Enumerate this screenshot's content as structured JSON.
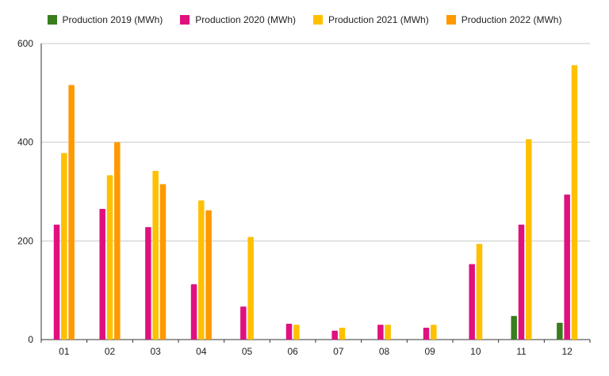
{
  "chart_data": {
    "type": "bar",
    "categories": [
      "01",
      "02",
      "03",
      "04",
      "05",
      "06",
      "07",
      "08",
      "09",
      "10",
      "11",
      "12"
    ],
    "series": [
      {
        "name": "Production 2019 (MWh)",
        "color": "#3a7d1e",
        "values": [
          null,
          null,
          null,
          null,
          null,
          null,
          null,
          null,
          null,
          null,
          48,
          34
        ]
      },
      {
        "name": "Production 2020 (MWh)",
        "color": "#e0107f",
        "values": [
          233,
          265,
          228,
          112,
          67,
          32,
          18,
          30,
          24,
          153,
          233,
          294
        ]
      },
      {
        "name": "Production 2021 (MWh)",
        "color": "#ffc000",
        "values": [
          378,
          333,
          342,
          282,
          208,
          30,
          24,
          30,
          30,
          194,
          406,
          556
        ]
      },
      {
        "name": "Production 2022 (MWh)",
        "color": "#ff9900",
        "values": [
          516,
          400,
          315,
          262,
          null,
          null,
          null,
          null,
          null,
          null,
          null,
          null
        ]
      }
    ],
    "yticks": [
      "0",
      "200",
      "400",
      "600"
    ],
    "ylim": [
      0,
      600
    ],
    "grid": true,
    "legend_position": "top-center"
  }
}
